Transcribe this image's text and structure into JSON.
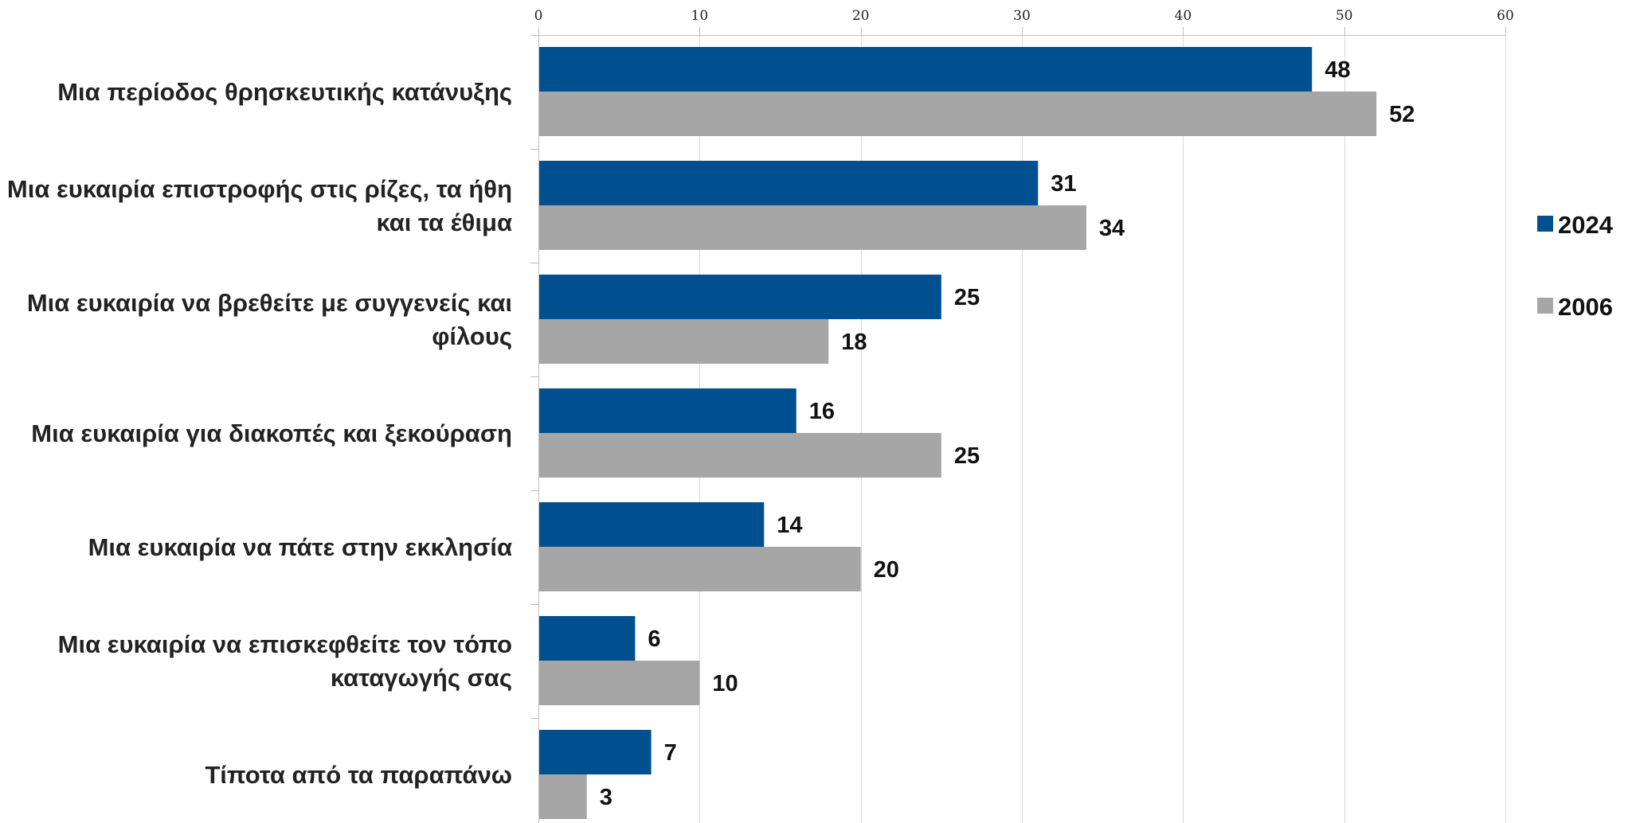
{
  "chart_data": {
    "type": "bar",
    "orientation": "horizontal",
    "categories": [
      [
        "Μια περίοδος θρησκευτικής κατάνυξης"
      ],
      [
        "Μια ευκαιρία επιστροφής στις ρίζες, τα ήθη",
        "και τα έθιμα"
      ],
      [
        "Μια ευκαιρία να βρεθείτε με συγγενείς και",
        "φίλους"
      ],
      [
        "Μια ευκαιρία για διακοπές και ξεκούραση"
      ],
      [
        "Μια ευκαιρία να πάτε στην εκκλησία"
      ],
      [
        "Μια ευκαιρία να επισκεφθείτε τον τόπο",
        "καταγωγής σας"
      ],
      [
        "Τίποτα από τα παραπάνω"
      ]
    ],
    "series": [
      {
        "name": "2024",
        "color": "#00508f",
        "values": [
          48,
          31,
          25,
          16,
          14,
          6,
          7
        ]
      },
      {
        "name": "2006",
        "color": "#a6a6a6",
        "values": [
          52,
          34,
          18,
          25,
          20,
          10,
          3
        ]
      }
    ],
    "xlim": [
      0,
      60
    ],
    "x_ticks": [
      0,
      10,
      20,
      30,
      40,
      50,
      60
    ],
    "x_axis_position": "top",
    "grid": true,
    "data_labels": true,
    "legend_position": "right",
    "title": "",
    "xlabel": "",
    "ylabel": ""
  }
}
